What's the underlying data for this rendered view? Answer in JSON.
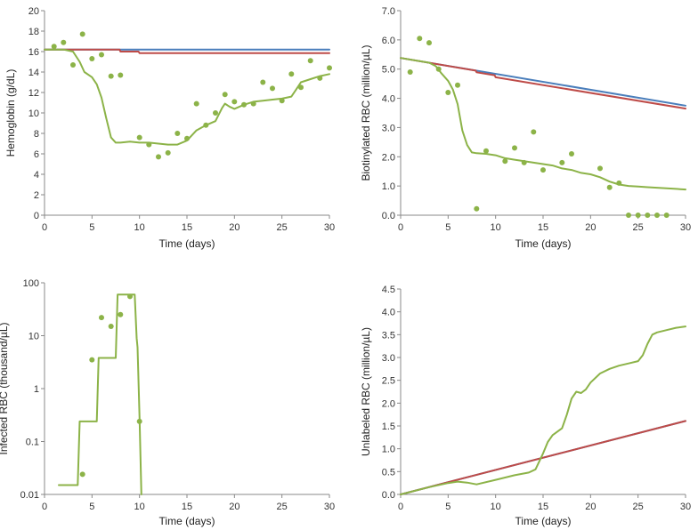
{
  "colors": {
    "blue": "#4a7ebb",
    "red": "#be4b48",
    "green": "#8cb348",
    "axis": "#888888"
  },
  "chart_data": [
    {
      "id": "hemoglobin",
      "type": "line",
      "title": "",
      "xlabel": "Time (days)",
      "ylabel": "Hemoglobin (g/dL)",
      "xlim": [
        0,
        30
      ],
      "ylim": [
        0,
        20
      ],
      "yscale": "linear",
      "xticks": [
        "0",
        "5",
        "10",
        "15",
        "20",
        "25",
        "30"
      ],
      "yticks": [
        "0",
        "2",
        "4",
        "6",
        "8",
        "10",
        "12",
        "14",
        "16",
        "18",
        "20"
      ],
      "series": [
        {
          "name": "blue",
          "kind": "line",
          "color": "blue",
          "x": [
            0,
            30
          ],
          "y": [
            16.2,
            16.2
          ]
        },
        {
          "name": "red",
          "kind": "line",
          "color": "red",
          "x": [
            0,
            7.9,
            8,
            9.9,
            10,
            30
          ],
          "y": [
            16.2,
            16.2,
            16.0,
            16.0,
            15.85,
            15.85
          ]
        },
        {
          "name": "green",
          "kind": "line",
          "color": "green",
          "x": [
            0,
            2,
            3,
            3.7,
            4.2,
            5,
            5.5,
            6,
            6.5,
            7,
            7.5,
            8,
            9,
            10,
            11,
            12,
            13,
            14,
            15,
            16,
            17,
            18,
            18.7,
            19,
            19.5,
            20,
            21,
            22,
            23,
            24,
            25,
            26,
            26.5,
            27,
            28,
            29,
            30
          ],
          "y": [
            16.2,
            16.2,
            16.0,
            15.0,
            14.0,
            13.5,
            12.8,
            11.5,
            9.5,
            7.6,
            7.1,
            7.1,
            7.2,
            7.1,
            7.1,
            7.0,
            6.9,
            6.9,
            7.3,
            8.3,
            8.8,
            9.2,
            10.5,
            10.9,
            10.6,
            10.4,
            10.8,
            11.1,
            11.2,
            11.3,
            11.4,
            11.6,
            12.3,
            13.0,
            13.3,
            13.6,
            13.8
          ]
        },
        {
          "name": "observed",
          "kind": "scatter",
          "color": "green",
          "x": [
            1,
            2,
            3,
            4,
            5,
            6,
            7,
            8,
            10,
            11,
            12,
            13,
            14,
            15,
            16,
            17,
            18,
            19,
            20,
            21,
            22,
            23,
            24,
            25,
            26,
            27,
            28,
            29,
            30
          ],
          "y": [
            16.5,
            16.9,
            14.7,
            17.7,
            15.3,
            15.7,
            13.6,
            13.7,
            7.6,
            6.9,
            5.7,
            6.1,
            8.0,
            7.5,
            10.9,
            8.8,
            10.0,
            11.8,
            11.1,
            10.8,
            10.9,
            13.0,
            12.4,
            11.2,
            13.8,
            12.5,
            15.1,
            13.4,
            14.4
          ]
        }
      ]
    },
    {
      "id": "biotinylated",
      "type": "line",
      "title": "",
      "xlabel": "Time (days)",
      "ylabel": "Biotinylated RBC (million/µL)",
      "xlim": [
        0,
        30
      ],
      "ylim": [
        0,
        7
      ],
      "yscale": "linear",
      "xticks": [
        "0",
        "5",
        "10",
        "15",
        "20",
        "25",
        "30"
      ],
      "yticks": [
        "0.0",
        "1.0",
        "2.0",
        "3.0",
        "4.0",
        "5.0",
        "6.0",
        "7.0"
      ],
      "series": [
        {
          "name": "blue",
          "kind": "line",
          "color": "blue",
          "x": [
            0,
            30
          ],
          "y": [
            5.38,
            3.75
          ]
        },
        {
          "name": "red",
          "kind": "line",
          "color": "red",
          "x": [
            0,
            7.9,
            8,
            9.9,
            10,
            30
          ],
          "y": [
            5.38,
            4.95,
            4.89,
            4.79,
            4.72,
            3.65
          ]
        },
        {
          "name": "green",
          "kind": "line",
          "color": "green",
          "x": [
            0,
            3,
            3.7,
            4.3,
            5,
            5.5,
            6,
            6.5,
            7,
            7.5,
            8,
            9,
            10,
            11,
            12,
            13,
            14,
            15,
            16,
            17,
            18,
            19,
            20,
            21,
            22,
            23,
            24,
            25,
            26,
            27,
            28,
            29,
            30
          ],
          "y": [
            5.38,
            5.22,
            5.1,
            4.85,
            4.6,
            4.3,
            3.8,
            2.9,
            2.4,
            2.15,
            2.12,
            2.1,
            2.05,
            1.95,
            1.9,
            1.85,
            1.8,
            1.75,
            1.7,
            1.6,
            1.55,
            1.45,
            1.4,
            1.3,
            1.15,
            1.05,
            1.0,
            0.98,
            0.96,
            0.94,
            0.92,
            0.9,
            0.88
          ]
        },
        {
          "name": "observed",
          "kind": "scatter",
          "color": "green",
          "x": [
            1,
            2,
            3,
            4,
            5,
            6,
            8,
            9,
            11,
            12,
            13,
            14,
            15,
            17,
            18,
            21,
            22,
            23,
            24,
            25,
            26,
            27,
            28
          ],
          "y": [
            4.9,
            6.05,
            5.9,
            5.0,
            4.2,
            4.45,
            0.22,
            2.2,
            1.85,
            2.3,
            1.8,
            2.85,
            1.55,
            1.8,
            2.1,
            1.6,
            0.95,
            1.1,
            0.0,
            0.0,
            0.0,
            0.0,
            0.0
          ]
        }
      ]
    },
    {
      "id": "infected",
      "type": "line",
      "title": "",
      "xlabel": "Time (days)",
      "ylabel": "Infected RBC (thousand/µL)",
      "xlim": [
        0,
        30
      ],
      "ylim": [
        0.01,
        100
      ],
      "yscale": "log",
      "xticks": [
        "0",
        "5",
        "10",
        "15",
        "20",
        "25",
        "30"
      ],
      "yticks": [
        "0.01",
        "0.1",
        "1",
        "10",
        "100"
      ],
      "series": [
        {
          "name": "green",
          "kind": "line",
          "color": "green",
          "x": [
            1.5,
            3.5,
            3.7,
            5.5,
            5.7,
            7.5,
            7.7,
            9.5,
            9.7,
            9.8,
            10.0,
            10.2
          ],
          "y": [
            0.015,
            0.015,
            0.24,
            0.24,
            3.8,
            3.8,
            60,
            60,
            9.0,
            6.0,
            0.3,
            0.01
          ]
        },
        {
          "name": "observed",
          "kind": "scatter",
          "color": "green",
          "x": [
            4,
            5,
            6,
            7,
            8,
            9,
            10
          ],
          "y": [
            0.024,
            3.5,
            22,
            15,
            25,
            55,
            0.24
          ]
        }
      ]
    },
    {
      "id": "unlabeled",
      "type": "line",
      "title": "",
      "xlabel": "Time (days)",
      "ylabel": "Unlabeled RBC (million/µL)",
      "xlim": [
        0,
        30
      ],
      "ylim": [
        0,
        4.5
      ],
      "yscale": "linear",
      "xticks": [
        "0",
        "5",
        "10",
        "15",
        "20",
        "25",
        "30"
      ],
      "yticks": [
        "0.0",
        "0.5",
        "1.0",
        "1.5",
        "2.0",
        "2.5",
        "3.0",
        "3.5",
        "4.0",
        "4.5"
      ],
      "series": [
        {
          "name": "blue",
          "kind": "line",
          "color": "blue",
          "x": [
            0,
            30
          ],
          "y": [
            0,
            1.61
          ]
        },
        {
          "name": "red",
          "kind": "line",
          "color": "red",
          "x": [
            0,
            30
          ],
          "y": [
            0,
            1.61
          ]
        },
        {
          "name": "green",
          "kind": "line",
          "color": "green",
          "x": [
            0,
            3,
            5,
            6,
            7,
            8,
            10,
            12,
            13.5,
            14.2,
            15,
            15.5,
            16,
            17,
            17.5,
            18,
            18.5,
            19,
            19.5,
            20,
            21,
            22,
            23,
            24,
            25,
            25.5,
            26,
            26.5,
            27,
            28,
            29,
            30
          ],
          "y": [
            0,
            0.16,
            0.25,
            0.28,
            0.26,
            0.22,
            0.32,
            0.42,
            0.48,
            0.55,
            0.9,
            1.15,
            1.3,
            1.45,
            1.75,
            2.1,
            2.25,
            2.22,
            2.3,
            2.45,
            2.65,
            2.75,
            2.82,
            2.87,
            2.92,
            3.05,
            3.3,
            3.5,
            3.55,
            3.6,
            3.65,
            3.68
          ]
        }
      ]
    }
  ]
}
